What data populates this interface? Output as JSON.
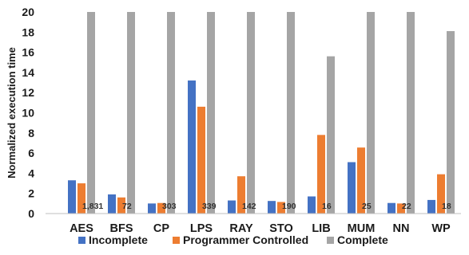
{
  "chart_data": {
    "type": "bar",
    "xlabel": "",
    "ylabel": "Normalized execution time",
    "ylim": [
      0,
      20
    ],
    "yticks": [
      0,
      2,
      4,
      6,
      8,
      10,
      12,
      14,
      16,
      18,
      20
    ],
    "grid": false,
    "legend_position": "bottom",
    "categories": [
      "AES",
      "BFS",
      "CP",
      "LPS",
      "RAY",
      "STO",
      "LIB",
      "MUM",
      "NN",
      "WP"
    ],
    "series": [
      {
        "name": "Incomplete",
        "color": "#4472C4",
        "values": [
          3.3,
          1.9,
          1.0,
          13.2,
          1.3,
          1.25,
          1.7,
          5.1,
          1.05,
          1.35
        ]
      },
      {
        "name": "Programmer Controlled",
        "color": "#ED7D31",
        "values": [
          3.0,
          1.6,
          1.05,
          10.6,
          3.7,
          1.15,
          7.8,
          6.55,
          1.0,
          3.9
        ]
      },
      {
        "name": "Complete",
        "color": "#A5A5A5",
        "values": [
          20,
          20,
          20,
          20,
          20,
          20,
          15.6,
          20,
          20,
          18.1
        ]
      }
    ],
    "annotations": [
      "1,831",
      "72",
      "303",
      "339",
      "142",
      "190",
      "16",
      "25",
      "22",
      "18"
    ]
  }
}
